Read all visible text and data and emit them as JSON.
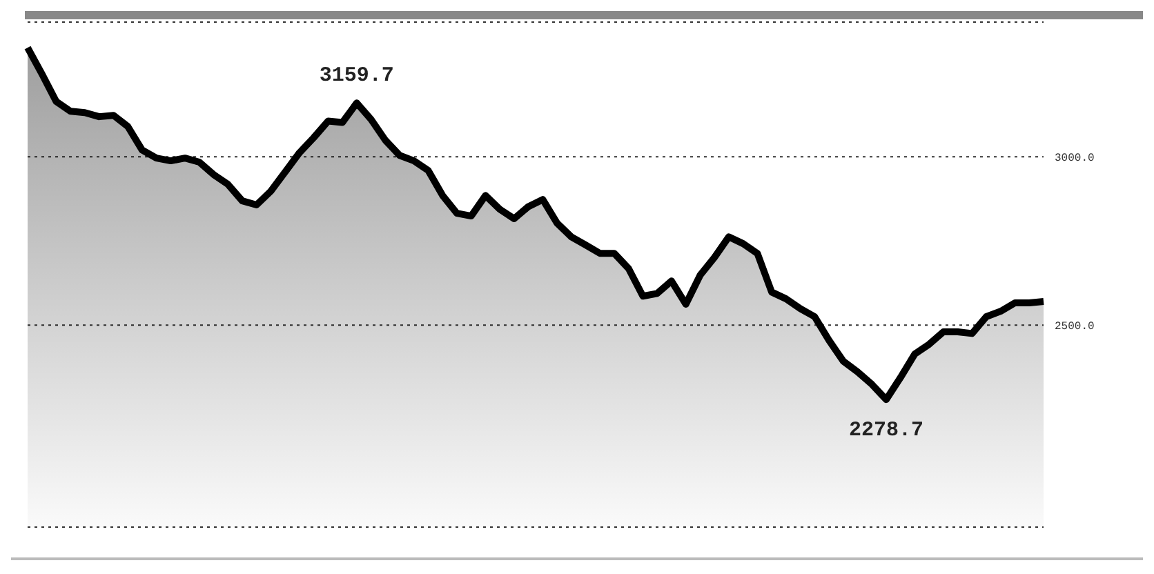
{
  "chart_data": {
    "type": "area",
    "categories": [
      null,
      null,
      null,
      null,
      null,
      null,
      null,
      null,
      null,
      null,
      null,
      null,
      null,
      null,
      null,
      null,
      null,
      null,
      null,
      null,
      null,
      null,
      null,
      null,
      null,
      null,
      null,
      null,
      null,
      null,
      null,
      null,
      null,
      null,
      null,
      null,
      null,
      null,
      null,
      null,
      null,
      null,
      null,
      null,
      null,
      null,
      null,
      null,
      null,
      null,
      null,
      null,
      null,
      null,
      null,
      null,
      null,
      null,
      null,
      null,
      null,
      null,
      null,
      null,
      null,
      null,
      null,
      null,
      null,
      null,
      null,
      null
    ],
    "series": [
      {
        "color": "#000000",
        "values": [
          3324,
          3246,
          3164,
          3135,
          3131,
          3119,
          3123,
          3090,
          3020,
          2996,
          2988,
          2996,
          2984,
          2947,
          2918,
          2869,
          2857,
          2898,
          2955,
          3012,
          3057,
          3106,
          3102,
          3159.7,
          3111,
          3049,
          3004,
          2988,
          2959,
          2885,
          2832,
          2824,
          2885,
          2844,
          2816,
          2852,
          2873,
          2803,
          2762,
          2738,
          2713,
          2713,
          2668,
          2586,
          2594,
          2631,
          2562,
          2648,
          2701,
          2762,
          2742,
          2713,
          2598,
          2578,
          2549,
          2525,
          2455,
          2393,
          2361,
          2324,
          2278.7,
          2344,
          2414,
          2443,
          2480,
          2480,
          2475,
          2525,
          2541,
          2566,
          2566,
          2570
        ],
        "value_labels": [
          null,
          null,
          null,
          null,
          null,
          null,
          null,
          null,
          null,
          null,
          null,
          null,
          null,
          null,
          null,
          null,
          null,
          null,
          null,
          null,
          null,
          null,
          null,
          "3159.7",
          null,
          null,
          null,
          null,
          null,
          null,
          null,
          null,
          null,
          null,
          null,
          null,
          null,
          null,
          null,
          null,
          null,
          null,
          null,
          null,
          null,
          null,
          null,
          null,
          null,
          null,
          null,
          null,
          null,
          null,
          null,
          null,
          null,
          null,
          null,
          null,
          "2278.7",
          null,
          null,
          null,
          null,
          null,
          null,
          null,
          null,
          null,
          null,
          null
        ]
      }
    ],
    "ylim": [
      1900,
      3400
    ],
    "yticks": [
      {
        "value": 3000,
        "label": "3000.0"
      },
      {
        "value": 2500,
        "label": "2500.0"
      }
    ],
    "grid": "y",
    "legend": false
  }
}
